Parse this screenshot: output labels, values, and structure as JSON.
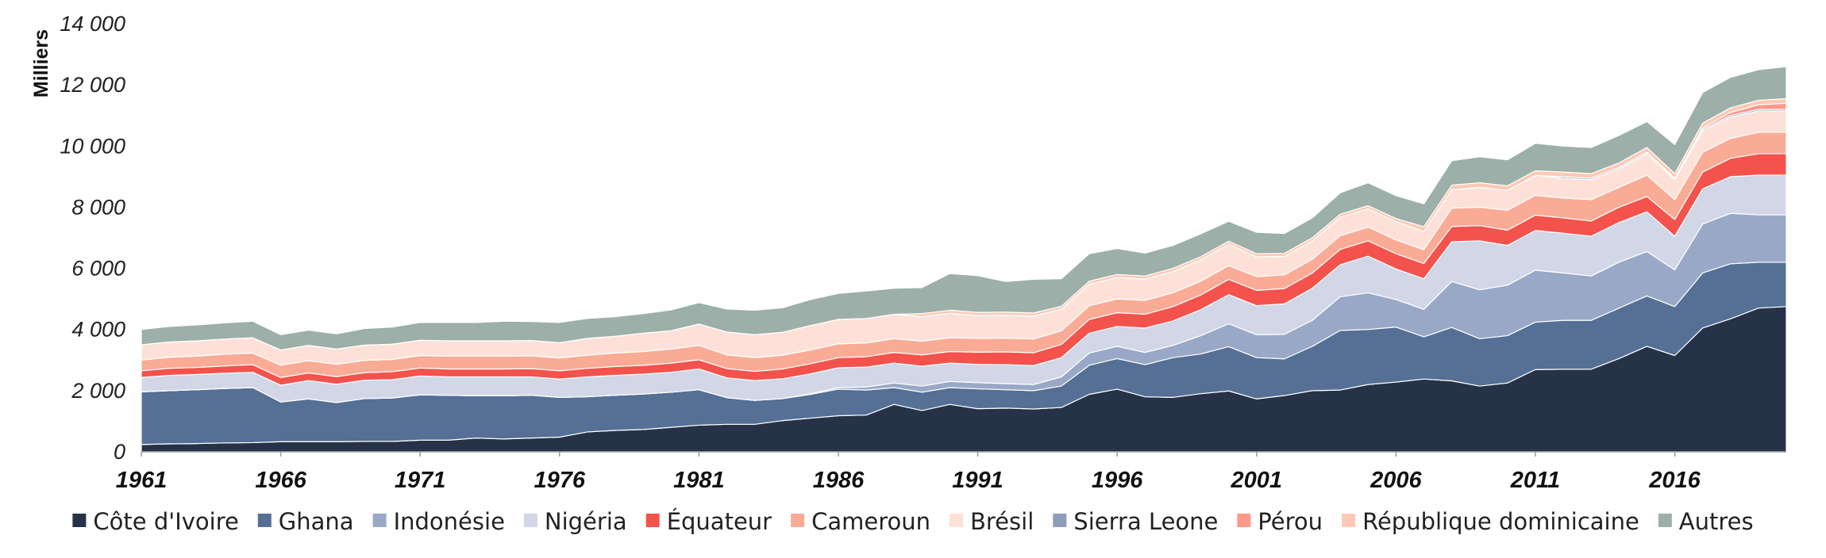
{
  "chart_data": {
    "type": "area",
    "stacked": true,
    "title": "",
    "xlabel": "",
    "ylabel": "Milliers",
    "ylim": [
      0,
      14000
    ],
    "yticks": [
      0,
      2000,
      4000,
      6000,
      8000,
      10000,
      12000,
      14000
    ],
    "ytick_labels": [
      "0",
      "2 000",
      "4 000",
      "6 000",
      "8 000",
      "10 000",
      "12 000",
      "14 000"
    ],
    "xticks": [
      1961,
      1966,
      1971,
      1976,
      1981,
      1986,
      1991,
      1996,
      2001,
      2006,
      2011,
      2016
    ],
    "xlim": [
      1961,
      2020
    ],
    "grid": false,
    "legend_position": "bottom",
    "x": [
      1961,
      1962,
      1963,
      1964,
      1965,
      1966,
      1967,
      1968,
      1969,
      1970,
      1971,
      1972,
      1973,
      1974,
      1975,
      1976,
      1977,
      1978,
      1979,
      1980,
      1981,
      1982,
      1983,
      1984,
      1985,
      1986,
      1987,
      1988,
      1989,
      1990,
      1991,
      1992,
      1993,
      1994,
      1995,
      1996,
      1997,
      1998,
      1999,
      2000,
      2001,
      2002,
      2003,
      2004,
      2005,
      2006,
      2007,
      2008,
      2009,
      2010,
      2011,
      2012,
      2013,
      2014,
      2015,
      2016,
      2017,
      2018,
      2019,
      2020
    ],
    "series": [
      {
        "name": "Côte d'Ivoire",
        "color": "#263247",
        "values": [
          240,
          260,
          270,
          290,
          300,
          330,
          330,
          330,
          340,
          340,
          380,
          380,
          450,
          420,
          450,
          480,
          650,
          700,
          730,
          800,
          870,
          900,
          900,
          1020,
          1100,
          1180,
          1200,
          1550,
          1350,
          1550,
          1410,
          1430,
          1400,
          1450,
          1880,
          2050,
          1800,
          1780,
          1900,
          1990,
          1730,
          1840,
          2000,
          2020,
          2200,
          2280,
          2380,
          2320,
          2150,
          2250,
          2690,
          2700,
          2700,
          3050,
          3450,
          3150,
          4050,
          4350,
          4700,
          4750
        ]
      },
      {
        "name": "Ghana",
        "color": "#556f95",
        "values": [
          1720,
          1740,
          1760,
          1780,
          1800,
          1300,
          1400,
          1280,
          1400,
          1420,
          1480,
          1470,
          1380,
          1410,
          1400,
          1300,
          1150,
          1150,
          1160,
          1150,
          1160,
          870,
          780,
          720,
          780,
          870,
          820,
          550,
          600,
          550,
          650,
          600,
          600,
          700,
          950,
          1000,
          1050,
          1300,
          1300,
          1450,
          1350,
          1200,
          1450,
          1950,
          1800,
          1800,
          1380,
          1750,
          1550,
          1550,
          1550,
          1600,
          1600,
          1650,
          1650,
          1600,
          1800,
          1800,
          1500,
          1450
        ]
      },
      {
        "name": "Indonésie",
        "color": "#98a8c6",
        "values": [
          0,
          0,
          0,
          0,
          0,
          0,
          0,
          0,
          0,
          0,
          0,
          0,
          0,
          0,
          0,
          0,
          0,
          0,
          0,
          0,
          0,
          0,
          0,
          0,
          20,
          50,
          100,
          150,
          200,
          200,
          200,
          200,
          200,
          300,
          400,
          400,
          400,
          400,
          600,
          750,
          750,
          800,
          850,
          1100,
          1200,
          900,
          900,
          1500,
          1600,
          1650,
          1700,
          1550,
          1450,
          1500,
          1450,
          1200,
          1600,
          1650,
          1550,
          1550
        ]
      },
      {
        "name": "Nigéria",
        "color": "#d2d7e7",
        "values": [
          470,
          500,
          500,
          500,
          500,
          550,
          600,
          600,
          600,
          600,
          620,
          600,
          620,
          620,
          600,
          600,
          650,
          650,
          650,
          650,
          680,
          650,
          650,
          650,
          650,
          650,
          650,
          650,
          650,
          600,
          600,
          620,
          620,
          630,
          650,
          650,
          800,
          800,
          850,
          950,
          950,
          1000,
          1050,
          1050,
          1200,
          1000,
          1000,
          1300,
          1600,
          1300,
          1300,
          1300,
          1300,
          1300,
          1300,
          1100,
          1150,
          1200,
          1300,
          1300
        ]
      },
      {
        "name": "Équateur",
        "color": "#f4524c",
        "values": [
          220,
          230,
          230,
          240,
          250,
          250,
          250,
          250,
          250,
          260,
          260,
          260,
          260,
          260,
          270,
          270,
          280,
          290,
          290,
          300,
          300,
          300,
          300,
          320,
          330,
          330,
          340,
          350,
          370,
          380,
          400,
          420,
          420,
          430,
          450,
          450,
          450,
          470,
          480,
          500,
          500,
          500,
          500,
          500,
          500,
          500,
          500,
          500,
          500,
          500,
          500,
          500,
          500,
          500,
          500,
          550,
          550,
          600,
          700,
          700
        ]
      },
      {
        "name": "Cameroun",
        "color": "#f9ab95",
        "values": [
          350,
          360,
          370,
          380,
          380,
          400,
          400,
          400,
          400,
          400,
          410,
          420,
          420,
          420,
          420,
          420,
          430,
          440,
          450,
          460,
          470,
          450,
          450,
          450,
          450,
          450,
          450,
          450,
          450,
          450,
          450,
          450,
          450,
          450,
          450,
          450,
          450,
          450,
          450,
          450,
          450,
          450,
          450,
          450,
          450,
          450,
          450,
          600,
          600,
          650,
          650,
          650,
          700,
          650,
          700,
          650,
          650,
          650,
          700,
          700
        ]
      },
      {
        "name": "Brésil",
        "color": "#fde1d8",
        "values": [
          500,
          500,
          500,
          500,
          500,
          500,
          500,
          500,
          500,
          500,
          500,
          500,
          500,
          500,
          500,
          500,
          550,
          550,
          600,
          600,
          700,
          750,
          750,
          750,
          800,
          800,
          800,
          800,
          800,
          800,
          750,
          750,
          750,
          700,
          700,
          700,
          700,
          700,
          700,
          700,
          650,
          600,
          600,
          600,
          600,
          600,
          600,
          600,
          650,
          650,
          650,
          650,
          650,
          600,
          700,
          650,
          700,
          700,
          700,
          700
        ]
      },
      {
        "name": "Sierra Leone",
        "color": "#8e9dba",
        "values": [
          0,
          0,
          0,
          0,
          0,
          0,
          0,
          0,
          0,
          0,
          0,
          0,
          0,
          0,
          0,
          0,
          0,
          0,
          0,
          0,
          0,
          0,
          0,
          0,
          0,
          0,
          0,
          0,
          0,
          0,
          0,
          0,
          0,
          0,
          0,
          0,
          0,
          0,
          0,
          0,
          0,
          0,
          0,
          0,
          0,
          0,
          0,
          0,
          0,
          0,
          0,
          50,
          50,
          50,
          50,
          50,
          50,
          50,
          50,
          50
        ]
      },
      {
        "name": "Pérou",
        "color": "#fc9989",
        "values": [
          0,
          0,
          0,
          0,
          0,
          0,
          0,
          0,
          0,
          0,
          0,
          0,
          0,
          0,
          0,
          0,
          0,
          0,
          0,
          0,
          0,
          0,
          0,
          0,
          0,
          0,
          0,
          0,
          0,
          0,
          0,
          0,
          0,
          0,
          0,
          0,
          0,
          0,
          0,
          0,
          0,
          0,
          0,
          0,
          0,
          0,
          0,
          0,
          0,
          0,
          0,
          0,
          0,
          0,
          0,
          0,
          50,
          100,
          150,
          200
        ]
      },
      {
        "name": "République dominicaine",
        "color": "#fcc9b5",
        "values": [
          0,
          0,
          0,
          0,
          0,
          0,
          0,
          0,
          0,
          0,
          0,
          0,
          0,
          0,
          0,
          0,
          0,
          0,
          0,
          0,
          0,
          0,
          0,
          0,
          0,
          0,
          0,
          0,
          100,
          100,
          100,
          100,
          100,
          100,
          100,
          100,
          100,
          100,
          100,
          100,
          100,
          100,
          100,
          100,
          100,
          100,
          150,
          150,
          150,
          150,
          150,
          150,
          150,
          150,
          150,
          150,
          150,
          150,
          150,
          150
        ]
      },
      {
        "name": "Autres",
        "color": "#9cafa8",
        "values": [
          500,
          510,
          520,
          530,
          540,
          500,
          500,
          500,
          540,
          560,
          580,
          600,
          600,
          640,
          620,
          660,
          650,
          640,
          640,
          680,
          700,
          750,
          800,
          800,
          850,
          850,
          900,
          850,
          850,
          1200,
          1200,
          1000,
          1100,
          900,
          900,
          850,
          750,
          750,
          750,
          650,
          700,
          650,
          650,
          700,
          750,
          750,
          750,
          800,
          850,
          850,
          900,
          850,
          850,
          900,
          850,
          950,
          1000,
          1000,
          1000,
          1050
        ]
      }
    ]
  }
}
